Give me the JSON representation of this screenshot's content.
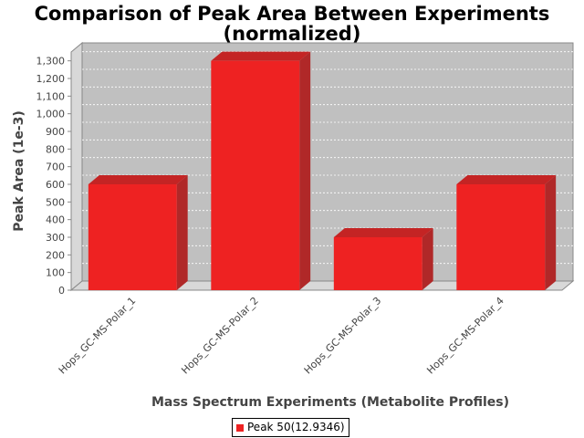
{
  "chart_data": {
    "type": "bar",
    "title": "Comparison of Peak Area Between Experiments",
    "subtitle": "(normalized)",
    "xlabel": "Mass Spectrum Experiments (Metabolite Profiles)",
    "ylabel": "Peak Area (1e-3)",
    "categories": [
      "Hops_GC-MS-Polar_1",
      "Hops_GC-MS-Polar_2",
      "Hops_GC-MS-Polar_3",
      "Hops_GC-MS-Polar_4"
    ],
    "series": [
      {
        "name": "Peak 50(12.9346)",
        "values": [
          600,
          1300,
          300,
          600
        ],
        "color": "#ee2222"
      }
    ],
    "ylim": [
      0,
      1350
    ],
    "yticks": [
      0,
      100,
      200,
      300,
      400,
      500,
      600,
      700,
      800,
      900,
      1000,
      1100,
      1200,
      1300
    ],
    "ytick_labels": [
      "0",
      "100",
      "200",
      "300",
      "400",
      "500",
      "600",
      "700",
      "800",
      "900",
      "1,000",
      "1,100",
      "1,200",
      "1,300"
    ],
    "grid": true,
    "legend_position": "bottom-center",
    "plot_background": "#c0c0c0"
  }
}
